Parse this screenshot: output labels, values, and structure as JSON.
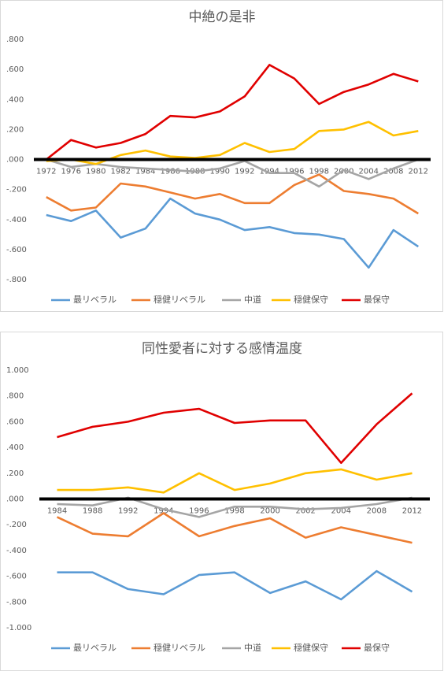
{
  "chart_data": [
    {
      "type": "line",
      "title": "中絶の是非",
      "categories": [
        "1972",
        "1976",
        "1980",
        "1982",
        "1984",
        "1986",
        "1988",
        "1990",
        "1992",
        "1994",
        "1996",
        "1998",
        "2000",
        "2004",
        "2008",
        "2012"
      ],
      "ylim": [
        -0.8,
        0.8
      ],
      "yticks": [
        {
          "value": 0.8,
          "label": ".800"
        },
        {
          "value": 0.6,
          "label": ".600"
        },
        {
          "value": 0.4,
          "label": ".400"
        },
        {
          "value": 0.2,
          "label": ".200"
        },
        {
          "value": 0,
          "label": ".000"
        },
        {
          "value": -0.2,
          "label": "-.200"
        },
        {
          "value": -0.4,
          "label": "-.400"
        },
        {
          "value": -0.6,
          "label": "-.600"
        },
        {
          "value": -0.8,
          "label": "-.800"
        }
      ],
      "legend": "bottom",
      "series": [
        {
          "name": "最リベラル",
          "color": "#5b9bd5",
          "values": [
            -0.37,
            -0.41,
            -0.34,
            -0.52,
            -0.46,
            -0.26,
            -0.36,
            -0.4,
            -0.47,
            -0.45,
            -0.49,
            -0.5,
            -0.53,
            -0.72,
            -0.47,
            -0.58
          ]
        },
        {
          "name": "穏健リベラル",
          "color": "#ed7d31",
          "values": [
            -0.25,
            -0.34,
            -0.32,
            -0.16,
            -0.18,
            -0.22,
            -0.26,
            -0.23,
            -0.29,
            -0.29,
            -0.17,
            -0.1,
            -0.21,
            -0.23,
            -0.26,
            -0.36
          ]
        },
        {
          "name": "中道",
          "color": "#a5a5a5",
          "values": [
            0.0,
            -0.05,
            -0.03,
            -0.05,
            -0.06,
            -0.07,
            -0.08,
            -0.06,
            -0.01,
            -0.09,
            -0.09,
            -0.18,
            -0.07,
            -0.13,
            -0.06,
            0.0
          ]
        },
        {
          "name": "穏健保守",
          "color": "#ffc000",
          "values": [
            -0.01,
            0.0,
            -0.03,
            0.03,
            0.06,
            0.02,
            0.01,
            0.03,
            0.11,
            0.05,
            0.07,
            0.19,
            0.2,
            0.25,
            0.16,
            0.19
          ]
        },
        {
          "name": "最保守",
          "color": "#e00000",
          "values": [
            0.0,
            0.13,
            0.08,
            0.11,
            0.17,
            0.29,
            0.28,
            0.32,
            0.42,
            0.63,
            0.54,
            0.37,
            0.45,
            0.5,
            0.57,
            0.52
          ]
        }
      ]
    },
    {
      "type": "line",
      "title": "同性愛者に対する感情温度",
      "categories": [
        "1984",
        "1988",
        "1992",
        "1994",
        "1996",
        "1998",
        "2000",
        "2002",
        "2004",
        "2008",
        "2012"
      ],
      "ylim": [
        -1,
        1
      ],
      "yticks": [
        {
          "value": 1,
          "label": "1.000"
        },
        {
          "value": 0.8,
          "label": ".800"
        },
        {
          "value": 0.6,
          "label": ".600"
        },
        {
          "value": 0.4,
          "label": ".400"
        },
        {
          "value": 0.2,
          "label": ".200"
        },
        {
          "value": 0,
          "label": ".000"
        },
        {
          "value": -0.2,
          "label": "-.200"
        },
        {
          "value": -0.4,
          "label": "-.400"
        },
        {
          "value": -0.6,
          "label": "-.600"
        },
        {
          "value": -0.8,
          "label": "-.800"
        },
        {
          "value": -1,
          "label": "-1.000"
        }
      ],
      "legend": "bottom",
      "series": [
        {
          "name": "最リベラル",
          "color": "#5b9bd5",
          "values": [
            -0.57,
            -0.57,
            -0.7,
            -0.74,
            -0.59,
            -0.57,
            -0.73,
            -0.64,
            -0.78,
            -0.56,
            -0.72
          ]
        },
        {
          "name": "穏健リベラル",
          "color": "#ed7d31",
          "values": [
            -0.14,
            -0.27,
            -0.29,
            -0.11,
            -0.29,
            -0.21,
            -0.15,
            -0.3,
            -0.22,
            -0.28,
            -0.34
          ]
        },
        {
          "name": "中道",
          "color": "#a5a5a5",
          "values": [
            -0.04,
            -0.05,
            0.01,
            -0.08,
            -0.14,
            -0.06,
            -0.06,
            -0.08,
            -0.07,
            -0.04,
            0.01
          ]
        },
        {
          "name": "穏健保守",
          "color": "#ffc000",
          "values": [
            0.07,
            0.07,
            0.09,
            0.05,
            0.2,
            0.07,
            0.12,
            0.2,
            0.23,
            0.15,
            0.2
          ]
        },
        {
          "name": "最保守",
          "color": "#e00000",
          "values": [
            0.48,
            0.56,
            0.6,
            0.67,
            0.7,
            0.59,
            0.61,
            0.61,
            0.28,
            0.58,
            0.82
          ]
        }
      ]
    }
  ]
}
